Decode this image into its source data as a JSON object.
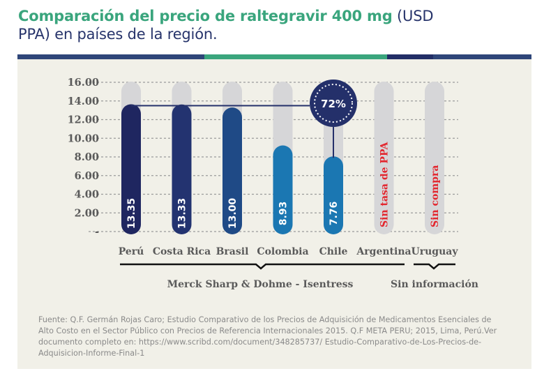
{
  "title": {
    "bold_part": "Comparación del precio de raltegravir 400 mg",
    "regular_part": " (USD PPA) en países de la región."
  },
  "colors": {
    "title_green": "#3aa57d",
    "title_navy": "#27346b",
    "panel_bg": "#f1f0e8",
    "track_gray": "#d6d6d8",
    "no_data_red": "#e3262e",
    "axis_text": "#5a5a5a",
    "callout_navy": "#24306a"
  },
  "chart_data": {
    "type": "bar",
    "title": "Comparación del precio de raltegravir 400 mg (USD PPA) en países de la región.",
    "xlabel": "",
    "ylabel": "",
    "ylim": [
      0,
      16
    ],
    "grid": true,
    "y_ticks": [
      {
        "value": 0,
        "label": "-"
      },
      {
        "value": 2,
        "label": "2.00"
      },
      {
        "value": 4,
        "label": "4.00"
      },
      {
        "value": 6,
        "label": "6.00"
      },
      {
        "value": 8,
        "label": "8.00"
      },
      {
        "value": 10,
        "label": "10.00"
      },
      {
        "value": 12,
        "label": "12.00"
      },
      {
        "value": 14,
        "label": "14.00"
      },
      {
        "value": 16,
        "label": "16.00"
      }
    ],
    "categories": [
      "Perú",
      "Costa Rica",
      "Brasil",
      "Colombia",
      "Chile",
      "Argentina",
      "Uruguay"
    ],
    "values": [
      13.35,
      13.33,
      13.0,
      8.93,
      7.76,
      null,
      null
    ],
    "value_labels": [
      "13.35",
      "13.33",
      "13.00",
      "8.93",
      "7.76",
      "Sin tasa de PPA",
      "Sin compra"
    ],
    "bar_colors": [
      "#1f2660",
      "#233370",
      "#1f4a86",
      "#1b77b2",
      "#1b77b2",
      null,
      null
    ],
    "annotation": {
      "text": "72%",
      "description": "Difference between Perú (highest) and Chile (lowest)",
      "from_category": "Perú",
      "to_category": "Chile"
    },
    "groups": [
      {
        "label": "Merck Sharp & Dohme - Isentress",
        "categories": [
          "Perú",
          "Costa Rica",
          "Brasil",
          "Colombia",
          "Chile",
          "Argentina"
        ]
      },
      {
        "label": "Sin información",
        "categories": [
          "Uruguay"
        ]
      }
    ]
  },
  "source": {
    "text": "Fuente: Q.F. Germán Rojas Caro; Estudio Comparativo de los Precios de Adquisición de Medicamentos Esenciales de Alto Costo en el Sector Público con Precios de Referencia Internacionales 2015. Q.F META PERU; 2015, Lima, Perú.Ver documento completo en:  https://www.scribd.com/document/348285737/ Estudio-Comparativo-de-Los-Precios-de-Adquisicion-Informe-Final-1"
  }
}
